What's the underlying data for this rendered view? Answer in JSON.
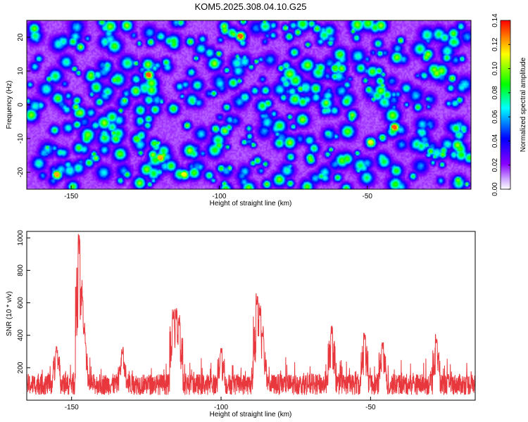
{
  "title": "KOM5.2025.308.04.10.G25",
  "chart_data": [
    {
      "type": "heatmap",
      "name": "spectrogram",
      "title": "KOM5.2025.308.04.10.G25",
      "xlabel": "Height of straight line (km)",
      "ylabel": "Frequency (Hz)",
      "xlim": [
        -165,
        -15
      ],
      "ylim": [
        -25,
        25
      ],
      "xticks": [
        -150,
        -100,
        -50
      ],
      "xtick_labels": [
        "-150",
        "-100",
        "-50"
      ],
      "yticks": [
        20,
        10,
        0,
        -10,
        -20
      ],
      "ytick_labels": [
        "20",
        "10",
        "0",
        "-10",
        "-20"
      ],
      "colorbar": {
        "label": "Normalized spectral amplitude",
        "range": [
          0,
          0.14
        ],
        "ticks": [
          0,
          0.02,
          0.04,
          0.06,
          0.08,
          0.1,
          0.12,
          0.14
        ],
        "tick_labels": [
          "0.00",
          "0.02",
          "0.04",
          "0.06",
          "0.08",
          "0.10",
          "0.12",
          "0.14"
        ],
        "colors": [
          "#ffffff",
          "#8800ff",
          "#0000ff",
          "#00ffff",
          "#00ff00",
          "#ffff00",
          "#ff0000"
        ]
      },
      "hotspots": [
        {
          "x": -93,
          "y": 20.5,
          "v": 0.13
        },
        {
          "x": -124,
          "y": 9,
          "v": 0.13
        },
        {
          "x": -41,
          "y": -6.5,
          "v": 0.13
        },
        {
          "x": -120,
          "y": -15.5,
          "v": 0.12
        },
        {
          "x": -155,
          "y": -20.5,
          "v": 0.12
        },
        {
          "x": -112,
          "y": -20.5,
          "v": 0.11
        },
        {
          "x": -49,
          "y": -11,
          "v": 0.11
        },
        {
          "x": -128,
          "y": -10,
          "v": 0.09
        },
        {
          "x": -61,
          "y": 11,
          "v": 0.09
        }
      ]
    },
    {
      "type": "line",
      "name": "snr",
      "xlabel": "Height of straight line (km)",
      "ylabel": "SNR (10 * v/v)",
      "xlim": [
        -165,
        -15
      ],
      "ylim": [
        0,
        1040
      ],
      "xticks": [
        -150,
        -100,
        -50
      ],
      "xtick_labels": [
        "-150",
        "-100",
        "-50"
      ],
      "yticks": [
        200,
        400,
        600,
        800,
        1000
      ],
      "ytick_labels": [
        "200",
        "400",
        "600",
        "800",
        "1000"
      ],
      "color": "#e8383d",
      "baseline": 130,
      "peaks": [
        {
          "x": -147.5,
          "y": 1030
        },
        {
          "x": -146.5,
          "y": 640
        },
        {
          "x": -145.8,
          "y": 460
        },
        {
          "x": -116,
          "y": 570
        },
        {
          "x": -115,
          "y": 570
        },
        {
          "x": -114,
          "y": 530
        },
        {
          "x": -88,
          "y": 660
        },
        {
          "x": -87,
          "y": 600
        },
        {
          "x": -86,
          "y": 420
        },
        {
          "x": -63,
          "y": 460
        },
        {
          "x": -52,
          "y": 420
        },
        {
          "x": -46,
          "y": 370
        },
        {
          "x": -28,
          "y": 410
        },
        {
          "x": -155,
          "y": 340
        },
        {
          "x": -133,
          "y": 330
        },
        {
          "x": -100,
          "y": 330
        }
      ]
    }
  ]
}
